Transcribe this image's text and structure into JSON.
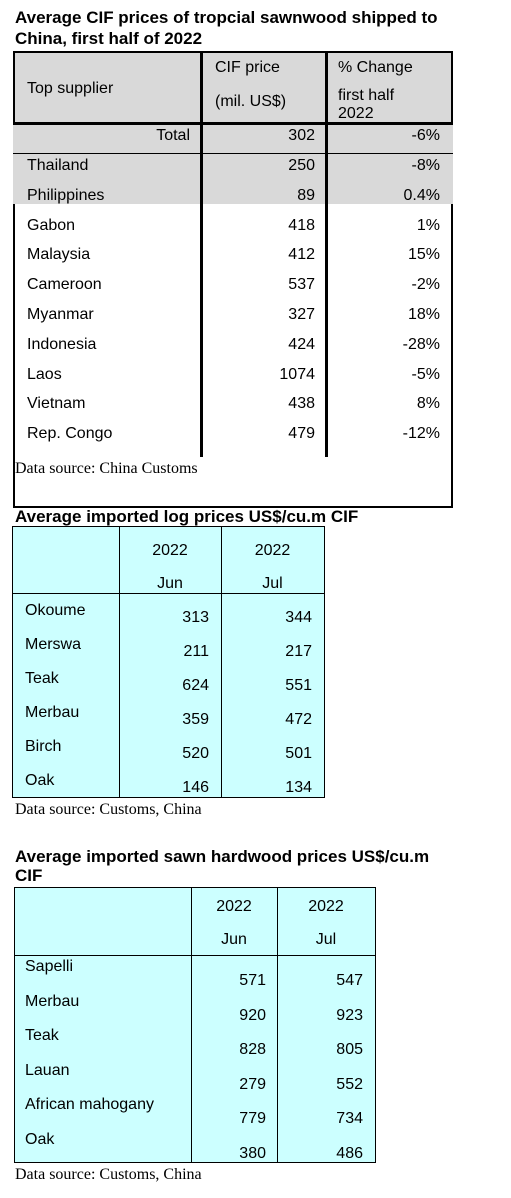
{
  "table1": {
    "title_line1": "Average CIF prices of tropcial sawnwood shipped to",
    "title_line2": "China, first half of 2022",
    "header": {
      "col1": "Top supplier",
      "col2_line1": "CIF price",
      "col2_line2": "(mil. US$)",
      "col3_line1": "% Change",
      "col3_line2": "first half",
      "col3_line3": "2022"
    },
    "total": {
      "label": "Total",
      "price": "302",
      "change": "-6%"
    },
    "rows": [
      {
        "supplier": "Thailand",
        "price": "250",
        "change": "-8%"
      },
      {
        "supplier": "Philippines",
        "price": "89",
        "change": "0.4%"
      },
      {
        "supplier": "Gabon",
        "price": "418",
        "change": "1%"
      },
      {
        "supplier": "Malaysia",
        "price": "412",
        "change": "15%"
      },
      {
        "supplier": "Cameroon",
        "price": "537",
        "change": "-2%"
      },
      {
        "supplier": "Myanmar",
        "price": "327",
        "change": "18%"
      },
      {
        "supplier": "Indonesia",
        "price": "424",
        "change": "-28%"
      },
      {
        "supplier": "Laos",
        "price": "1074",
        "change": "-5%"
      },
      {
        "supplier": "Vietnam",
        "price": "438",
        "change": "8%"
      },
      {
        "supplier": "Rep. Congo",
        "price": "479",
        "change": "-12%"
      }
    ],
    "source": "Data source: China Customs"
  },
  "table2": {
    "title": "Average imported log prices US$/cu.m CIF",
    "header": {
      "year1": "2022",
      "month1": "Jun",
      "year2": "2022",
      "month2": "Jul"
    },
    "rows": [
      {
        "species": "Okoume",
        "jun": "313",
        "jul": "344"
      },
      {
        "species": "Merswa",
        "jun": "211",
        "jul": "217"
      },
      {
        "species": "Teak",
        "jun": "624",
        "jul": "551"
      },
      {
        "species": "Merbau",
        "jun": "359",
        "jul": "472"
      },
      {
        "species": "Birch",
        "jun": "520",
        "jul": "501"
      },
      {
        "species": "Oak",
        "jun": "146",
        "jul": "134"
      }
    ],
    "source": "Data source: Customs, China"
  },
  "table3": {
    "title_line1": "Average imported sawn hardwood prices US$/cu.m",
    "title_line2": "CIF",
    "header": {
      "year1": "2022",
      "month1": "Jun",
      "year2": "2022",
      "month2": "Jul"
    },
    "rows": [
      {
        "species": "Sapelli",
        "jun": "571",
        "jul": "547"
      },
      {
        "species": "Merbau",
        "jun": "920",
        "jul": "923"
      },
      {
        "species": "Teak",
        "jun": "828",
        "jul": "805"
      },
      {
        "species": "Lauan",
        "jun": "279",
        "jul": "552"
      },
      {
        "species": "African mahogany",
        "jun": "779",
        "jul": "734"
      },
      {
        "species": "Oak",
        "jun": "380",
        "jul": "486"
      }
    ],
    "source": "Data source: Customs, China"
  },
  "colors": {
    "header_gray": "#d9d9d9",
    "table_cyan": "#ccffff"
  }
}
